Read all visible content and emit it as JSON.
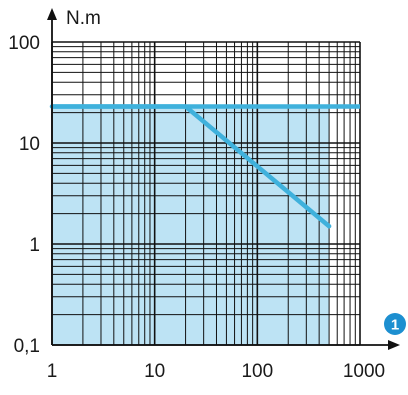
{
  "chart_data": {
    "type": "line",
    "x_scale": "log",
    "y_scale": "log",
    "xlim": [
      1,
      1000
    ],
    "ylim": [
      0.1,
      100
    ],
    "ylabel": "N.m",
    "x_tick_labels": [
      "1",
      "10",
      "100",
      "1000"
    ],
    "y_tick_labels": [
      "0,1",
      "1",
      "10",
      "100"
    ],
    "xaxis_badge": "1",
    "grid": true,
    "series": [
      {
        "x": [
          1,
          20,
          500
        ],
        "y": [
          23,
          23,
          1.5
        ]
      }
    ],
    "reference_lines": [
      {
        "y": 23,
        "x_range": [
          1,
          1000
        ]
      }
    ],
    "shaded_region": {
      "x_range": [
        1,
        500
      ],
      "y_max": 23
    },
    "colors": {
      "line": "#3fb1dc",
      "fill": "#bde3f4",
      "grid": "#111111",
      "badge": "#1d8fd0"
    }
  }
}
